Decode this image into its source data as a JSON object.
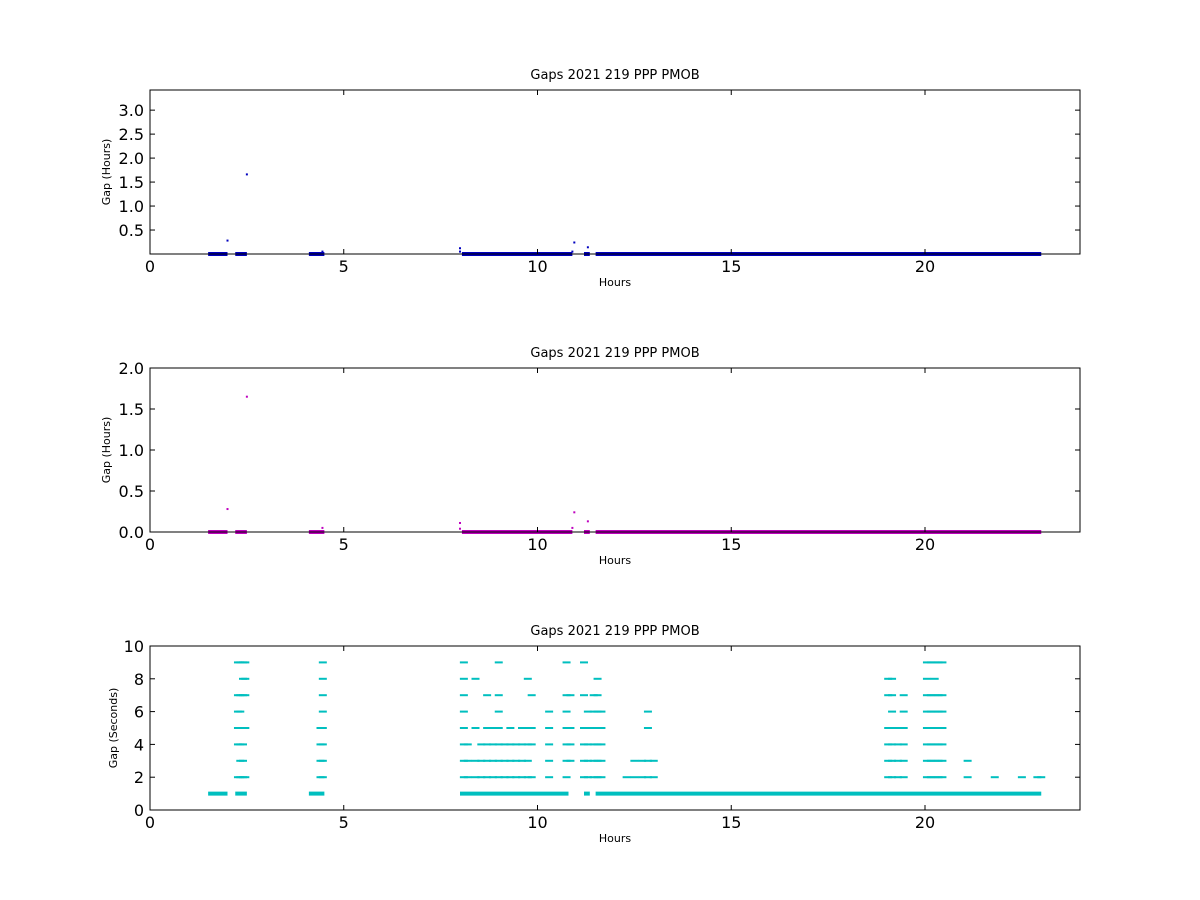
{
  "chart_data": [
    {
      "type": "scatter",
      "title": "Gaps 2021 219 PPP  PMOB",
      "xlabel": "Hours",
      "ylabel": "Gap (Hours)",
      "xlim": [
        0,
        24
      ],
      "ylim": [
        0,
        3.42
      ],
      "xticks": [
        0,
        5,
        10,
        15,
        20
      ],
      "yticks": [
        0.5,
        1.0,
        1.5,
        2.0,
        2.5,
        3.0
      ],
      "color": "#0000bf",
      "grid": false,
      "series": [
        {
          "dense_ranges": [
            [
              1.5,
              2.0
            ],
            [
              2.2,
              2.5
            ],
            [
              4.1,
              4.5
            ],
            [
              8.05,
              10.9
            ],
            [
              11.2,
              11.35
            ],
            [
              11.5,
              23.0
            ]
          ],
          "baseline_value": 0.0,
          "points": [
            [
              2.0,
              0.28
            ],
            [
              2.5,
              1.66
            ],
            [
              8.0,
              0.12
            ],
            [
              8.0,
              0.05
            ],
            [
              10.95,
              0.24
            ],
            [
              10.9,
              0.05
            ],
            [
              11.3,
              0.14
            ],
            [
              4.45,
              0.05
            ]
          ]
        }
      ]
    },
    {
      "type": "scatter",
      "title": "Gaps 2021 219 PPP  PMOB",
      "xlabel": "Hours",
      "ylabel": "Gap (Hours)",
      "xlim": [
        0,
        24
      ],
      "ylim": [
        0,
        2.0
      ],
      "xticks": [
        0,
        5,
        10,
        15,
        20
      ],
      "yticks": [
        0.0,
        0.5,
        1.0,
        1.5,
        2.0
      ],
      "color": "#bf00bf",
      "grid": false,
      "series": [
        {
          "dense_ranges": [
            [
              1.5,
              2.0
            ],
            [
              2.2,
              2.5
            ],
            [
              4.1,
              4.5
            ],
            [
              8.05,
              10.9
            ],
            [
              11.2,
              11.35
            ],
            [
              11.5,
              23.0
            ]
          ],
          "baseline_value": 0.0,
          "points": [
            [
              2.0,
              0.28
            ],
            [
              2.5,
              1.65
            ],
            [
              8.0,
              0.11
            ],
            [
              8.0,
              0.04
            ],
            [
              10.95,
              0.24
            ],
            [
              10.9,
              0.05
            ],
            [
              11.3,
              0.13
            ],
            [
              4.45,
              0.05
            ]
          ]
        }
      ]
    },
    {
      "type": "scatter",
      "title": "Gaps 2021 219 PPP  PMOB",
      "xlabel": "Hours",
      "ylabel": "Gap (Seconds)",
      "xlim": [
        0,
        24
      ],
      "ylim": [
        0,
        10
      ],
      "xticks": [
        0,
        5,
        10,
        15,
        20
      ],
      "yticks": [
        0,
        2,
        4,
        6,
        8,
        10
      ],
      "color": "#00bfbf",
      "grid": false,
      "series": [
        {
          "dense_ranges": [
            [
              1.5,
              2.0
            ],
            [
              2.2,
              2.5
            ],
            [
              4.1,
              4.5
            ],
            [
              8.0,
              10.8
            ],
            [
              11.2,
              11.35
            ],
            [
              11.5,
              23.0
            ]
          ],
          "baseline_value": 1,
          "columns": [
            [
              2.27,
              [
                2,
                4,
                5,
                6,
                7,
                9
              ]
            ],
            [
              2.33,
              [
                2,
                3,
                4,
                5,
                6,
                7,
                9
              ]
            ],
            [
              2.4,
              [
                2,
                3,
                4,
                5,
                7,
                8,
                9
              ]
            ],
            [
              2.46,
              [
                2,
                5,
                7,
                8,
                9
              ]
            ],
            [
              4.4,
              [
                2,
                3,
                4,
                5
              ]
            ],
            [
              4.46,
              [
                2,
                3,
                4,
                5,
                6,
                7,
                8,
                9
              ]
            ],
            [
              8.1,
              [
                2,
                3,
                4,
                5,
                6,
                7,
                8,
                9
              ]
            ],
            [
              8.2,
              [
                2,
                3,
                4
              ]
            ],
            [
              8.4,
              [
                2,
                3,
                5,
                8
              ]
            ],
            [
              8.55,
              [
                2,
                3,
                4
              ]
            ],
            [
              8.7,
              [
                2,
                3,
                4,
                5,
                7
              ]
            ],
            [
              8.85,
              [
                2,
                3,
                4,
                5
              ]
            ],
            [
              9.0,
              [
                2,
                3,
                4,
                5,
                6,
                7,
                9
              ]
            ],
            [
              9.15,
              [
                2,
                3,
                4
              ]
            ],
            [
              9.3,
              [
                2,
                3,
                4,
                5
              ]
            ],
            [
              9.45,
              [
                2,
                3,
                4
              ]
            ],
            [
              9.6,
              [
                2,
                3,
                4,
                5
              ]
            ],
            [
              9.75,
              [
                2,
                3,
                4,
                5,
                8
              ]
            ],
            [
              9.85,
              [
                2,
                4,
                5,
                7
              ]
            ],
            [
              10.3,
              [
                2,
                3,
                4,
                5,
                6
              ]
            ],
            [
              10.75,
              [
                2,
                3,
                4,
                5,
                6,
                7,
                9
              ]
            ],
            [
              10.85,
              [
                3,
                4,
                5,
                7
              ]
            ],
            [
              11.2,
              [
                2,
                3,
                4,
                5,
                7,
                9
              ]
            ],
            [
              11.3,
              [
                2,
                3,
                4,
                5,
                6
              ]
            ],
            [
              11.45,
              [
                2,
                3,
                4,
                5,
                6,
                7
              ]
            ],
            [
              11.55,
              [
                2,
                3,
                4,
                5,
                6,
                7,
                8
              ]
            ],
            [
              11.65,
              [
                2,
                3,
                4,
                5,
                6
              ]
            ],
            [
              12.3,
              [
                2
              ]
            ],
            [
              12.5,
              [
                2,
                3
              ]
            ],
            [
              12.7,
              [
                2,
                3
              ]
            ],
            [
              12.85,
              [
                2,
                3,
                5,
                6
              ]
            ],
            [
              13.0,
              [
                2,
                3
              ]
            ],
            [
              19.05,
              [
                2,
                3,
                4,
                5,
                7,
                8
              ]
            ],
            [
              19.15,
              [
                2,
                3,
                4,
                5,
                6,
                7,
                8
              ]
            ],
            [
              19.3,
              [
                2,
                3,
                4,
                5
              ]
            ],
            [
              19.45,
              [
                2,
                3,
                4,
                5,
                6,
                7
              ]
            ],
            [
              20.05,
              [
                2,
                3,
                4,
                5,
                6,
                7,
                8,
                9
              ]
            ],
            [
              20.15,
              [
                2,
                3,
                4,
                5,
                6,
                7,
                9
              ]
            ],
            [
              20.25,
              [
                2,
                3,
                4,
                5,
                6,
                7,
                8,
                9
              ]
            ],
            [
              20.35,
              [
                2,
                3,
                4,
                5,
                6,
                7,
                9
              ]
            ],
            [
              20.45,
              [
                2,
                3,
                4,
                5,
                6,
                7,
                9
              ]
            ],
            [
              21.1,
              [
                2,
                3
              ]
            ],
            [
              21.8,
              [
                2
              ]
            ],
            [
              22.5,
              [
                2
              ]
            ],
            [
              22.9,
              [
                2
              ]
            ],
            [
              23.0,
              [
                2
              ]
            ]
          ]
        }
      ]
    }
  ]
}
